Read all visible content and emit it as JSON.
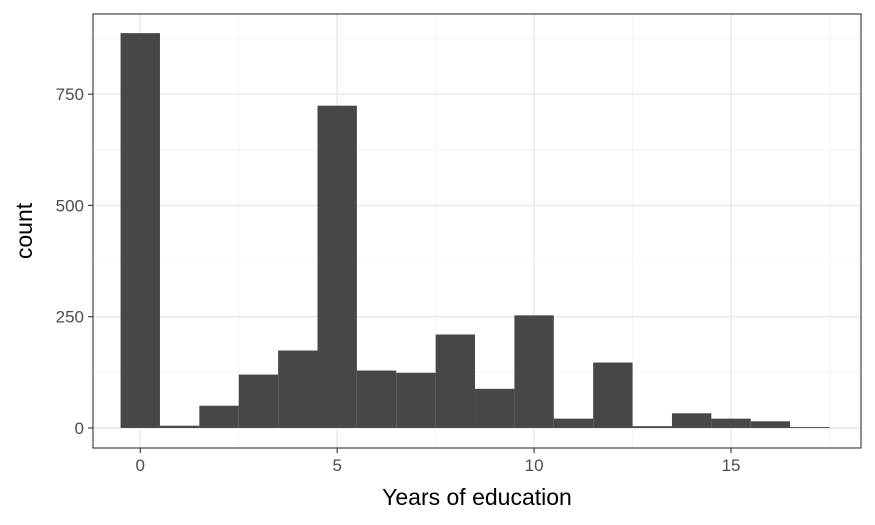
{
  "chart_data": {
    "type": "bar",
    "title": "",
    "xlabel": "Years of education",
    "ylabel": "count",
    "x_ticks": [
      0,
      5,
      10,
      15
    ],
    "y_ticks": [
      0,
      250,
      500,
      750
    ],
    "xlim": [
      -1.2,
      18.3
    ],
    "ylim": [
      -45,
      930
    ],
    "grid": true,
    "bin_width": 1,
    "bins": [
      {
        "x": 0,
        "count": 887
      },
      {
        "x": 1,
        "count": 5
      },
      {
        "x": 2,
        "count": 50
      },
      {
        "x": 3,
        "count": 120
      },
      {
        "x": 4,
        "count": 174
      },
      {
        "x": 5,
        "count": 724
      },
      {
        "x": 6,
        "count": 129
      },
      {
        "x": 7,
        "count": 124
      },
      {
        "x": 8,
        "count": 210
      },
      {
        "x": 9,
        "count": 88
      },
      {
        "x": 10,
        "count": 253
      },
      {
        "x": 11,
        "count": 21
      },
      {
        "x": 12,
        "count": 147
      },
      {
        "x": 13,
        "count": 4
      },
      {
        "x": 14,
        "count": 33
      },
      {
        "x": 15,
        "count": 21
      },
      {
        "x": 16,
        "count": 15
      },
      {
        "x": 17,
        "count": 2
      }
    ],
    "colors": {
      "bar": "#474747",
      "panel_border": "#333333",
      "grid_major": "#ebebeb",
      "grid_minor": "#f4f4f4",
      "tick": "#333333"
    }
  }
}
